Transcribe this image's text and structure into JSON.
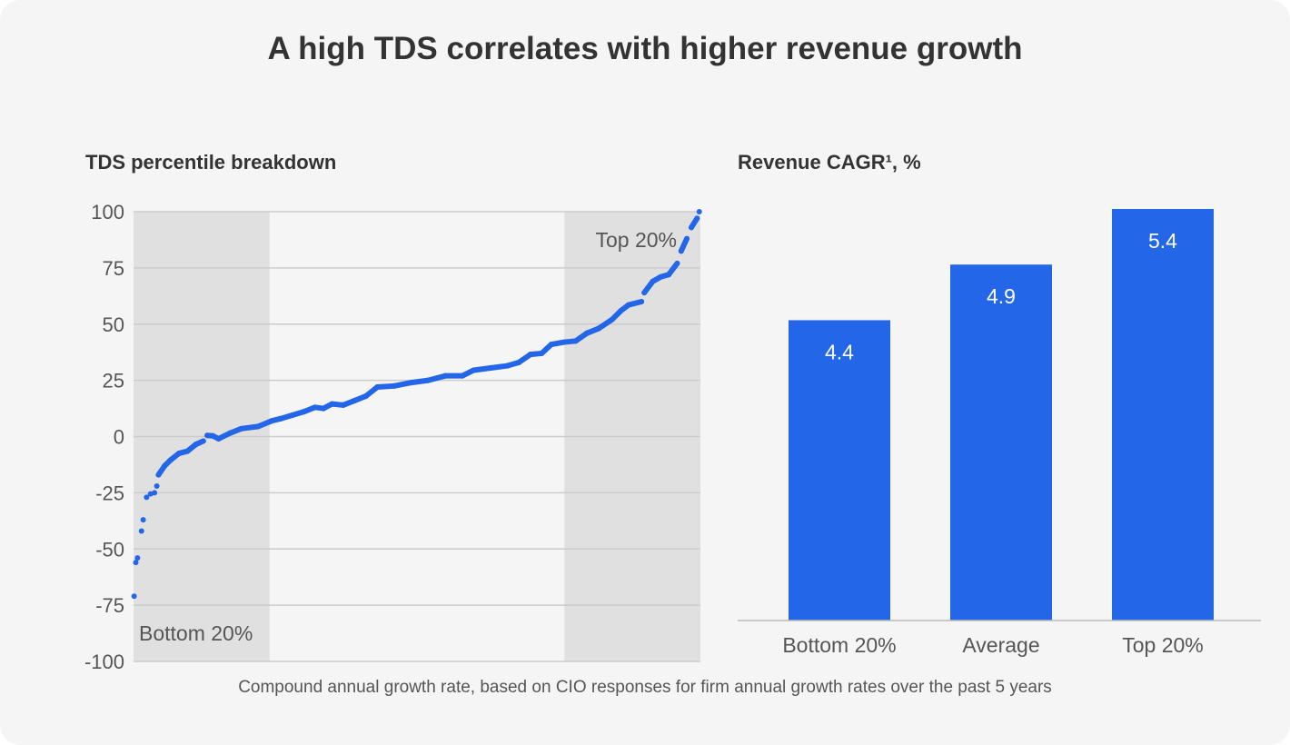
{
  "title": "A high TDS correlates with higher revenue growth",
  "footnote": "Compound annual growth rate, based on CIO responses for firm annual growth rates over the past 5 years",
  "colors": {
    "accent": "#2366e8",
    "band": "#e0e0e0",
    "grid": "#cccccc",
    "background": "#f5f5f5"
  },
  "chart_data": [
    {
      "type": "scatter",
      "title": "TDS percentile breakdown",
      "ylim": [
        -100,
        100
      ],
      "xlim": [
        0,
        100
      ],
      "yticks": [
        100,
        75,
        50,
        25,
        0,
        -25,
        -50,
        -75,
        -100
      ],
      "grid": true,
      "bands": [
        {
          "label": "Bottom 20%",
          "from": 0,
          "to": 24
        },
        {
          "label": "Top 20%",
          "from": 76,
          "to": 100
        }
      ],
      "points": [
        [
          0.1,
          -71
        ],
        [
          0.4,
          -56
        ],
        [
          0.7,
          -54
        ],
        [
          1.4,
          -42
        ],
        [
          1.7,
          -37
        ],
        [
          2.3,
          -27
        ],
        [
          3,
          -25.5
        ],
        [
          3.7,
          -25
        ],
        [
          4.1,
          -22
        ],
        [
          4.4,
          -17
        ],
        [
          5.5,
          -13
        ],
        [
          6.5,
          -10.5
        ],
        [
          8,
          -7.5
        ],
        [
          9.5,
          -6.5
        ],
        [
          11,
          -3.5
        ],
        [
          12.3,
          -2
        ],
        [
          13,
          0.5
        ],
        [
          14,
          0.3
        ],
        [
          15,
          -1
        ],
        [
          17,
          1.5
        ],
        [
          19,
          3.5
        ],
        [
          22,
          4.5
        ],
        [
          24.4,
          7
        ],
        [
          26,
          8
        ],
        [
          28,
          9.5
        ],
        [
          30,
          11
        ],
        [
          32,
          13
        ],
        [
          33.5,
          12.5
        ],
        [
          35,
          14.5
        ],
        [
          37,
          14
        ],
        [
          39,
          16
        ],
        [
          41,
          18
        ],
        [
          43,
          22
        ],
        [
          46,
          22.5
        ],
        [
          49,
          24
        ],
        [
          52,
          25
        ],
        [
          55,
          27
        ],
        [
          58,
          27
        ],
        [
          60,
          29.5
        ],
        [
          63,
          30.5
        ],
        [
          66,
          31.5
        ],
        [
          68,
          33
        ],
        [
          70,
          36.5
        ],
        [
          72,
          37
        ],
        [
          73.7,
          41
        ],
        [
          76,
          42
        ],
        [
          78,
          42.5
        ],
        [
          80,
          46
        ],
        [
          82,
          48
        ],
        [
          84.4,
          52
        ],
        [
          86,
          56
        ],
        [
          87.3,
          58.5
        ],
        [
          89.6,
          60
        ],
        [
          90.1,
          64
        ],
        [
          91.6,
          69
        ],
        [
          93,
          71
        ],
        [
          94.4,
          72
        ],
        [
          95.9,
          77
        ],
        [
          96.6,
          82.5
        ],
        [
          97.6,
          88
        ],
        [
          98.4,
          93
        ],
        [
          99.4,
          97
        ],
        [
          99.8,
          100
        ]
      ]
    },
    {
      "type": "bar",
      "title": "Revenue CAGR¹, %",
      "categories": [
        "Bottom 20%",
        "Average",
        "Top 20%"
      ],
      "values": [
        4.4,
        4.9,
        5.4
      ],
      "data_labels": [
        "4.4",
        "4.9",
        "5.4"
      ],
      "ylim": [
        1.7,
        5.4
      ]
    }
  ]
}
